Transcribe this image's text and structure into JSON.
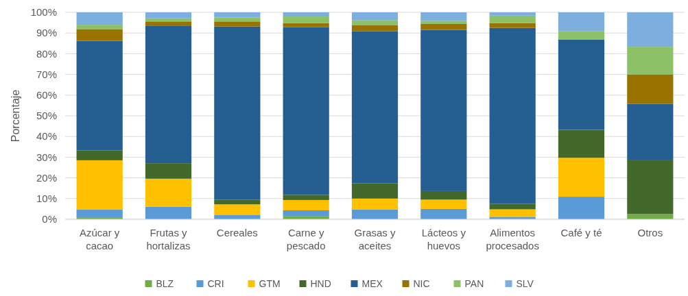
{
  "chart_data": {
    "type": "bar",
    "stacked": true,
    "ylabel": "Porcentaje",
    "categories": [
      "Azúcar y cacao",
      "Frutas y hortalizas",
      "Cereales",
      "Carne y pescado",
      "Grasas y aceites",
      "Lácteos y huevos",
      "Alimentos procesados",
      "Café y té",
      "Otros"
    ],
    "series": [
      {
        "name": "BLZ",
        "color": "#70ad47",
        "values": [
          0.7,
          0,
          0,
          1.6,
          0,
          0,
          0,
          0,
          2.5
        ]
      },
      {
        "name": "CRI",
        "color": "#5b9bd5",
        "values": [
          4.1,
          6.0,
          2.2,
          2.7,
          4.7,
          5.0,
          1.2,
          10.9,
          0
        ]
      },
      {
        "name": "GTM",
        "color": "#ffc000",
        "values": [
          23.7,
          13.6,
          5.0,
          5.0,
          5.3,
          4.5,
          3.6,
          18.8,
          0
        ]
      },
      {
        "name": "HND",
        "color": "#43682b",
        "values": [
          4.8,
          7.5,
          2.2,
          2.5,
          7.4,
          4.1,
          2.7,
          13.5,
          26.0
        ]
      },
      {
        "name": "MEX",
        "color": "#255e91",
        "values": [
          52.9,
          66.3,
          83.8,
          81.1,
          73.4,
          77.9,
          85.0,
          43.7,
          27.2
        ]
      },
      {
        "name": "NIC",
        "color": "#997300",
        "values": [
          5.7,
          2.2,
          2.4,
          1.9,
          3.1,
          2.9,
          2.3,
          0,
          14.3
        ]
      },
      {
        "name": "PAN",
        "color": "#8cc168",
        "values": [
          2.1,
          1.5,
          1.9,
          3.2,
          2.2,
          1.5,
          3.6,
          4.1,
          13.4
        ]
      },
      {
        "name": "SLV",
        "color": "#7cafdd",
        "values": [
          6.0,
          2.9,
          2.5,
          2.0,
          3.9,
          4.1,
          1.6,
          9.0,
          16.6
        ]
      }
    ],
    "ylim": [
      0,
      100
    ],
    "yticks": [
      {
        "value": 0,
        "label": "0%"
      },
      {
        "value": 10,
        "label": "10%"
      },
      {
        "value": 20,
        "label": "20%"
      },
      {
        "value": 30,
        "label": "30%"
      },
      {
        "value": 40,
        "label": "40%"
      },
      {
        "value": 50,
        "label": "50%"
      },
      {
        "value": 60,
        "label": "60%"
      },
      {
        "value": 70,
        "label": "70%"
      },
      {
        "value": 80,
        "label": "80%"
      },
      {
        "value": 90,
        "label": "90%"
      },
      {
        "value": 100,
        "label": "100%"
      }
    ],
    "grid": "y",
    "legend": "bottom"
  }
}
